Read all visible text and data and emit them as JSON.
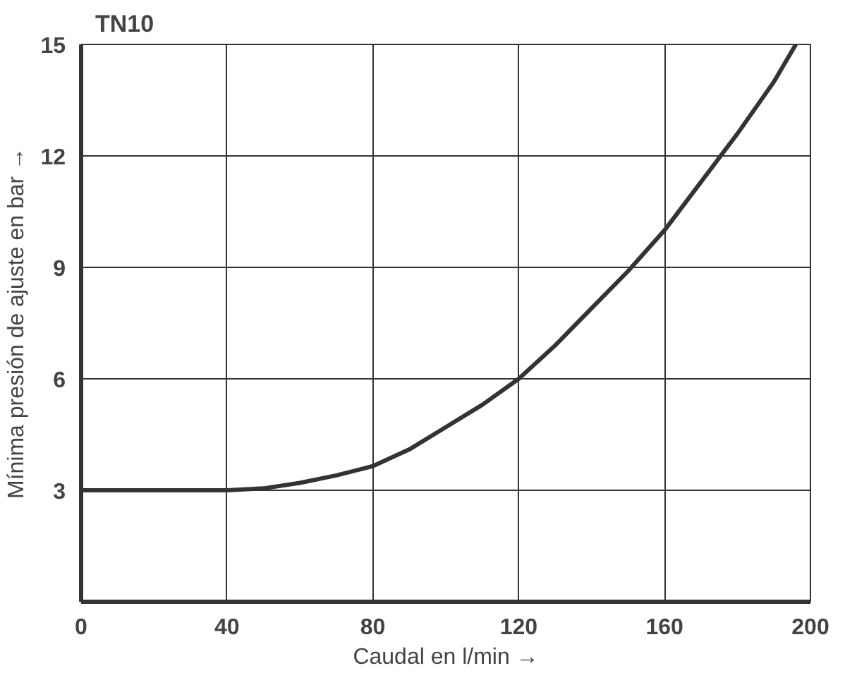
{
  "chart_data": {
    "type": "line",
    "title": "TN10",
    "xlabel": "Caudal en l/min →",
    "ylabel": "Mínima presión de ajuste en bar →",
    "x": [
      0,
      40,
      50,
      60,
      70,
      80,
      90,
      100,
      110,
      120,
      130,
      140,
      150,
      160,
      170,
      180,
      190,
      196
    ],
    "series": [
      {
        "color": "#333333",
        "values": [
          3,
          3,
          3.05,
          3.2,
          3.4,
          3.65,
          4.1,
          4.7,
          5.3,
          6,
          6.9,
          7.9,
          8.9,
          10,
          11.3,
          12.6,
          14,
          15
        ]
      }
    ],
    "xlim": [
      0,
      200
    ],
    "ylim": [
      0,
      15
    ],
    "xticks": [
      0,
      40,
      80,
      120,
      160,
      200
    ],
    "yticks": [
      3,
      6,
      9,
      12,
      15
    ],
    "grid": true,
    "marker": "none",
    "line_style": "solid"
  }
}
